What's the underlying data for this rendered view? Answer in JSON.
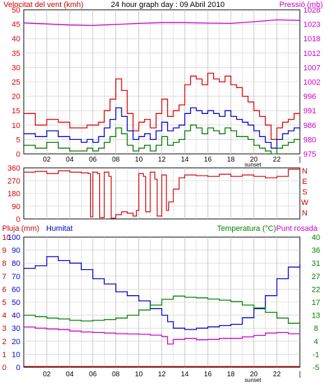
{
  "page": {
    "title": "24 hour graph day : 09 Abril 2010",
    "sunset_label": "sunset"
  },
  "colors": {
    "background": "#ffffff",
    "grid": "#c8c8c8",
    "wind": "#e00000",
    "wind_avg": "#0000cc",
    "wind_low": "#007700",
    "pressure": "#cc00cc",
    "direction": "#d00000",
    "humidity": "#0000cc",
    "temperature": "#008000",
    "dewpoint": "#cc00cc",
    "rain": "#cc0000"
  },
  "chart_data": [
    {
      "type": "line",
      "title": "24 hour graph day : 09 Abril 2010",
      "ylabel_left": "Velocitat del vent (kmh)",
      "ylabel_right": "Pressió (mb)",
      "x_ticks": [
        "02",
        "04",
        "06",
        "08",
        "10",
        "12",
        "14",
        "16",
        "18",
        "20",
        "22",
        "|"
      ],
      "y_ticks_left": [
        "0",
        "5",
        "10",
        "15",
        "20",
        "25",
        "30",
        "35",
        "40",
        "45",
        "50"
      ],
      "y_ticks_right": [
        "975",
        "980",
        "986",
        "991",
        "996",
        "1002",
        "1007",
        "1012",
        "1018",
        "1023",
        "1028"
      ],
      "ylim_left": [
        0,
        50
      ],
      "ylim_right": [
        975,
        1028
      ],
      "grid": true,
      "series": [
        {
          "key": "wind_gust",
          "x": [
            0.0,
            1.0,
            2.0,
            3.0,
            4.0,
            5.0,
            5.5,
            6.0,
            6.5,
            7.0,
            7.5,
            8.0,
            8.5,
            9.0,
            9.5,
            10.0,
            10.5,
            11.0,
            11.5,
            12.0,
            12.5,
            13.0,
            13.5,
            14.0,
            14.5,
            15.0,
            15.5,
            16.0,
            16.5,
            17.0,
            17.5,
            18.0,
            18.5,
            19.0,
            19.5,
            20.0,
            20.5,
            21.0,
            21.5,
            22.0,
            22.5,
            23.0,
            23.5,
            24.0
          ],
          "values": [
            14,
            10,
            12,
            11,
            9,
            9,
            10,
            10,
            11,
            15,
            19,
            26,
            22,
            14,
            8,
            11,
            12,
            9,
            14,
            19,
            13,
            15,
            17,
            24,
            27,
            26,
            24,
            28,
            26,
            25,
            27,
            24,
            23,
            20,
            18,
            15,
            13,
            10,
            5,
            9,
            11,
            12,
            14,
            13
          ]
        },
        {
          "key": "wind_avg",
          "x": [
            0.0,
            1.0,
            2.0,
            3.0,
            4.0,
            5.0,
            5.5,
            6.0,
            6.5,
            7.0,
            7.5,
            8.0,
            8.5,
            9.0,
            9.5,
            10.0,
            10.5,
            11.0,
            11.5,
            12.0,
            12.5,
            13.0,
            13.5,
            14.0,
            14.5,
            15.0,
            15.5,
            16.0,
            16.5,
            17.0,
            17.5,
            18.0,
            18.5,
            19.0,
            19.5,
            20.0,
            20.5,
            21.0,
            21.5,
            22.0,
            22.5,
            23.0,
            23.5,
            24.0
          ],
          "values": [
            7,
            6,
            8,
            6,
            5,
            4,
            5,
            4,
            6,
            9,
            12,
            16,
            13,
            8,
            5,
            6,
            7,
            5,
            8,
            11,
            8,
            9,
            10,
            14,
            16,
            15,
            14,
            15,
            14,
            13,
            15,
            13,
            12,
            11,
            10,
            8,
            6,
            4,
            2,
            5,
            7,
            8,
            9,
            8
          ]
        },
        {
          "key": "wind_low",
          "x": [
            0.0,
            1.0,
            2.0,
            3.0,
            4.0,
            5.0,
            5.5,
            6.0,
            6.5,
            7.0,
            7.5,
            8.0,
            8.5,
            9.0,
            9.5,
            10.0,
            10.5,
            11.0,
            11.5,
            12.0,
            12.5,
            13.0,
            13.5,
            14.0,
            14.5,
            15.0,
            15.5,
            16.0,
            16.5,
            17.0,
            17.5,
            18.0,
            18.5,
            19.0,
            19.5,
            20.0,
            20.5,
            21.0,
            21.5,
            22.0,
            22.5,
            23.0,
            23.5,
            24.0
          ],
          "values": [
            3,
            2,
            4,
            2,
            1,
            1,
            2,
            1,
            2,
            4,
            6,
            9,
            7,
            3,
            1,
            2,
            3,
            1,
            3,
            6,
            3,
            4,
            5,
            8,
            10,
            9,
            7,
            9,
            8,
            7,
            9,
            8,
            6,
            6,
            5,
            3,
            2,
            1,
            0,
            2,
            3,
            4,
            5,
            4
          ]
        },
        {
          "key": "pressure",
          "axis": "right",
          "x": [
            0,
            2,
            4,
            6,
            8,
            10,
            12,
            14,
            16,
            18,
            20,
            22,
            24
          ],
          "values": [
            1023.2,
            1022.8,
            1022.4,
            1022.2,
            1022.6,
            1023.0,
            1023.3,
            1023.3,
            1023.1,
            1023.0,
            1023.6,
            1024.3,
            1024.1
          ]
        }
      ]
    },
    {
      "type": "line",
      "ylabel_right": "NWSEN",
      "y_ticks_left": [
        "0",
        "90",
        "180",
        "270",
        "360"
      ],
      "y_ticks_right": [
        "N",
        "W",
        "S",
        "E",
        "N"
      ],
      "ylim": [
        0,
        360
      ],
      "grid": true,
      "series": [
        {
          "key": "wind_direction",
          "x": [
            0.0,
            1.0,
            2.0,
            3.0,
            4.0,
            5.0,
            5.6,
            5.8,
            6.0,
            6.4,
            6.6,
            7.0,
            7.4,
            7.6,
            8.0,
            8.5,
            9.0,
            9.5,
            9.8,
            10.0,
            10.4,
            10.6,
            11.0,
            11.4,
            11.6,
            12.0,
            12.4,
            12.6,
            13.0,
            13.5,
            14.0,
            15.0,
            16.0,
            17.0,
            18.0,
            19.0,
            20.0,
            21.0,
            22.0,
            23.0,
            24.0
          ],
          "values": [
            330,
            335,
            320,
            340,
            330,
            325,
            320,
            15,
            330,
            320,
            10,
            330,
            300,
            5,
            30,
            50,
            40,
            20,
            60,
            320,
            300,
            50,
            330,
            280,
            20,
            310,
            60,
            120,
            210,
            290,
            310,
            305,
            300,
            315,
            300,
            310,
            300,
            290,
            300,
            350,
            355
          ]
        }
      ]
    },
    {
      "type": "line",
      "ylabel_left": "Pluja (mm)",
      "ylabel_left2": "Humitat",
      "ylabel_right": "Temperatura (°C)",
      "ylabel_right2": "Punt rosada",
      "y_ticks_left_rain": [
        "0",
        "1",
        "2",
        "3",
        "4",
        "5",
        "6",
        "7",
        "8",
        "9",
        "10"
      ],
      "y_ticks_left_humidity": [
        "0",
        "10",
        "20",
        "30",
        "40",
        "50",
        "60",
        "70",
        "80",
        "90",
        "100"
      ],
      "y_ticks_right": [
        "-5",
        "-1",
        "4",
        "8",
        "13",
        "17",
        "22",
        "27",
        "31",
        "36",
        "40"
      ],
      "ylim_humidity": [
        0,
        100
      ],
      "ylim_temperature": [
        -5,
        40
      ],
      "grid": true,
      "series": [
        {
          "key": "humidity",
          "x": [
            0,
            1,
            2,
            3,
            4,
            5,
            6,
            7,
            8,
            9,
            10,
            11,
            12,
            12.5,
            13,
            14,
            15,
            16,
            17,
            18,
            19,
            20,
            21,
            22,
            23,
            24
          ],
          "values": [
            76,
            78,
            85,
            82,
            80,
            75,
            68,
            64,
            58,
            55,
            51,
            45,
            40,
            35,
            30,
            29,
            30,
            31,
            32,
            33,
            38,
            45,
            55,
            68,
            77,
            79
          ]
        },
        {
          "key": "temperature",
          "x": [
            0,
            1,
            2,
            3,
            4,
            5,
            6,
            7,
            8,
            9,
            10,
            11,
            12,
            13,
            14,
            15,
            16,
            17,
            18,
            19,
            20,
            21,
            22,
            23,
            24
          ],
          "values": [
            13.0,
            12.5,
            12.0,
            11.7,
            11.2,
            11.0,
            11.2,
            11.5,
            12.0,
            13.0,
            14.8,
            16.5,
            18.5,
            19.6,
            19.2,
            19.0,
            18.6,
            18.2,
            17.7,
            16.5,
            15.5,
            14.0,
            12.0,
            10.2,
            10.0
          ]
        },
        {
          "key": "dewpoint",
          "x": [
            0,
            1,
            2,
            3,
            4,
            5,
            6,
            7,
            8,
            9,
            10,
            11,
            12,
            12.5,
            13,
            14,
            15,
            16,
            17,
            18,
            19,
            20,
            21,
            22,
            23,
            24
          ],
          "values": [
            8.9,
            8.5,
            8.2,
            8.0,
            7.5,
            7.2,
            7.0,
            6.8,
            6.6,
            6.5,
            6.4,
            6.1,
            5.6,
            3.0,
            4.6,
            5.0,
            4.5,
            4.6,
            5.0,
            5.0,
            5.5,
            6.0,
            6.8,
            7.0,
            6.6,
            6.5
          ]
        },
        {
          "key": "rain",
          "x": [
            0,
            24
          ],
          "values": [
            0,
            0
          ]
        }
      ]
    }
  ]
}
